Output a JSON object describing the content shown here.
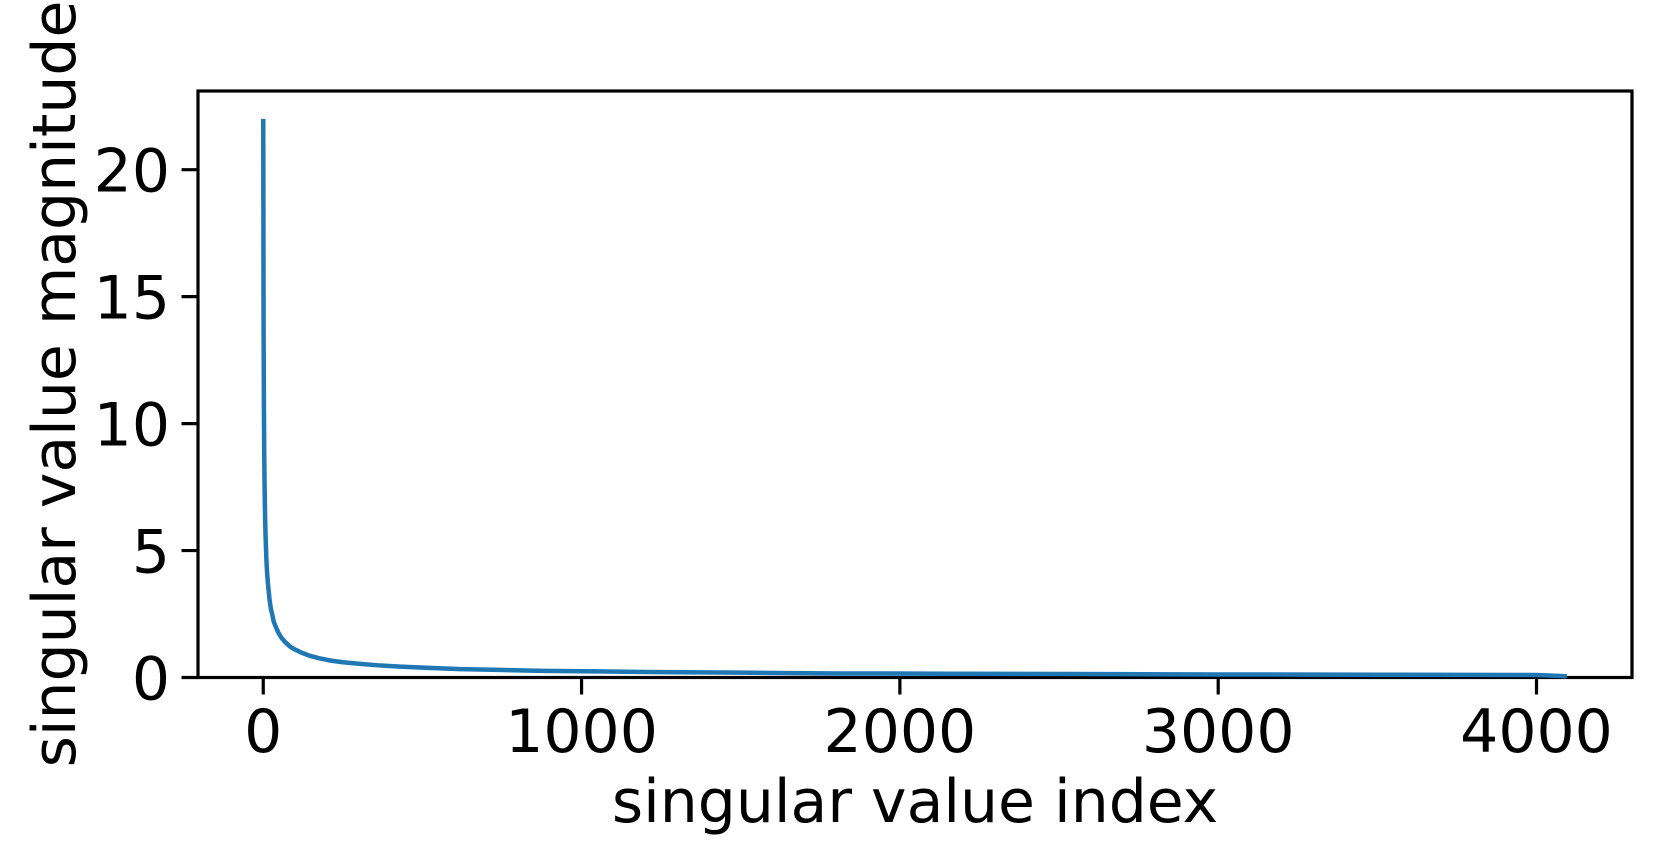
{
  "chart_data": {
    "type": "line",
    "title": "",
    "xlabel": "singular value index",
    "ylabel": "singular value magnitude",
    "xlim": [
      -205,
      4300
    ],
    "ylim": [
      0,
      23.1
    ],
    "x_ticks": [
      0,
      1000,
      2000,
      3000,
      4000
    ],
    "y_ticks": [
      0,
      5,
      10,
      15,
      20
    ],
    "grid": false,
    "legend": null,
    "background_color": "#ffffff",
    "axis_color": "#000000",
    "series": [
      {
        "color": "#1f77b4",
        "x": [
          0,
          1,
          2,
          3,
          4,
          5,
          6,
          7,
          8,
          10,
          12,
          14,
          17,
          20,
          24,
          28,
          33,
          40,
          48,
          58,
          70,
          85,
          100,
          120,
          145,
          175,
          210,
          250,
          300,
          360,
          430,
          520,
          620,
          740,
          880,
          1050,
          1250,
          1500,
          1800,
          2150,
          2550,
          3000,
          3500,
          4000,
          4095
        ],
        "y": [
          22.0,
          14.0,
          10.8,
          8.9,
          7.7,
          6.9,
          6.2,
          5.7,
          5.3,
          4.6,
          4.15,
          3.8,
          3.4,
          3.04,
          2.7,
          2.5,
          2.2,
          1.97,
          1.75,
          1.55,
          1.38,
          1.21,
          1.1,
          0.98,
          0.86,
          0.76,
          0.67,
          0.6,
          0.54,
          0.48,
          0.43,
          0.38,
          0.33,
          0.3,
          0.26,
          0.24,
          0.21,
          0.19,
          0.16,
          0.15,
          0.14,
          0.12,
          0.11,
          0.1,
          0.05
        ]
      }
    ]
  }
}
